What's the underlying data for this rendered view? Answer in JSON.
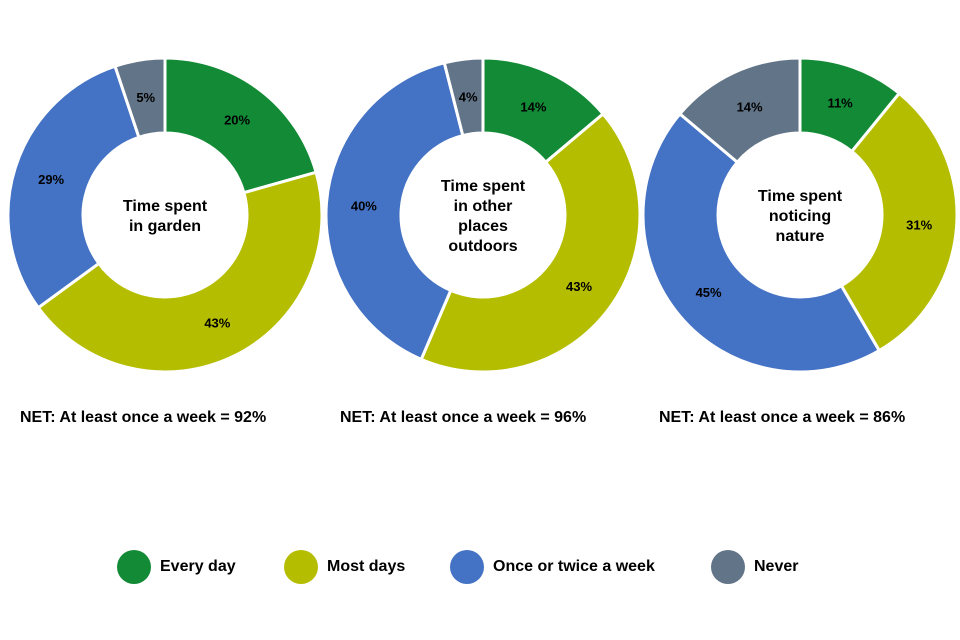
{
  "colors": {
    "every_day": "#138a36",
    "most_days": "#b5bd00",
    "once_or_twice": "#4472c4",
    "never": "#627487"
  },
  "chart_data": [
    {
      "type": "pie",
      "title_lines": [
        "Time spent",
        "in garden"
      ],
      "categories": [
        "Every day",
        "Most days",
        "Once or twice a week",
        "Never"
      ],
      "values": [
        20,
        43,
        29,
        5
      ],
      "labels": [
        "20%",
        "43%",
        "29%",
        "5%"
      ],
      "net": "NET: At least once a week = 92%"
    },
    {
      "type": "pie",
      "title_lines": [
        "Time spent",
        "in other",
        "places",
        "outdoors"
      ],
      "categories": [
        "Every day",
        "Most days",
        "Once or twice a week",
        "Never"
      ],
      "values": [
        14,
        43,
        40,
        4
      ],
      "labels": [
        "14%",
        "43%",
        "40%",
        "4%"
      ],
      "net": "NET: At least once a week = 96%"
    },
    {
      "type": "pie",
      "title_lines": [
        "Time spent",
        "noticing",
        "nature"
      ],
      "categories": [
        "Every day",
        "Most days",
        "Once or twice a week",
        "Never"
      ],
      "values": [
        11,
        31,
        45,
        14
      ],
      "labels": [
        "11%",
        "31%",
        "45%",
        "14%"
      ],
      "net": "NET: At least once a week = 86%"
    }
  ],
  "legend": [
    {
      "label": "Every day",
      "color": "#138a36"
    },
    {
      "label": "Most days",
      "color": "#b5bd00"
    },
    {
      "label": "Once or twice a week",
      "color": "#4472c4"
    },
    {
      "label": "Never",
      "color": "#627487"
    }
  ]
}
